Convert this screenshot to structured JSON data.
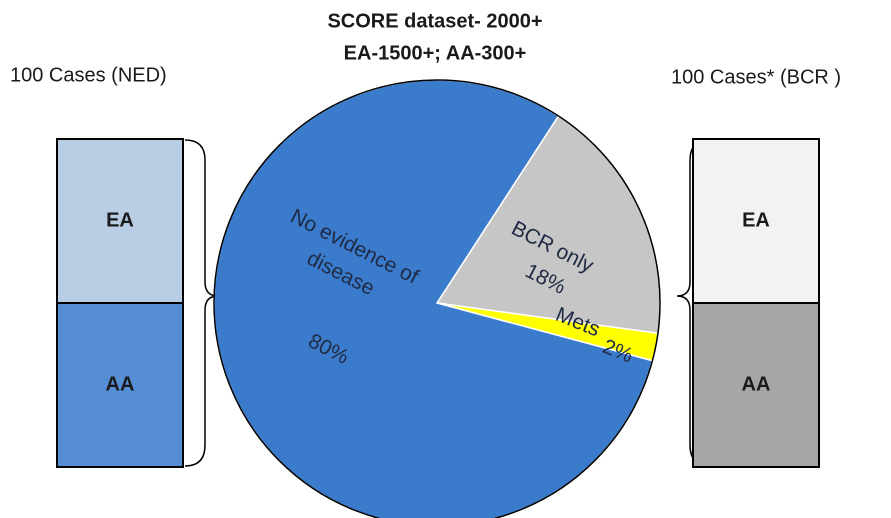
{
  "chart_data": {
    "type": "pie",
    "title": "SCORE dataset- 2000+",
    "subtitle": "EA-1500+; AA-300+",
    "categories": [
      "No evidence of disease",
      "BCR only",
      "Mets"
    ],
    "values": [
      80,
      18,
      2
    ],
    "value_labels": [
      "80%",
      "18%",
      "2%"
    ],
    "colors": [
      "#3b7bcb",
      "#c6c6c6",
      "#ffff00"
    ]
  },
  "left_group": {
    "label": "100 Cases (NED)",
    "segments": [
      "EA",
      "AA"
    ]
  },
  "right_group": {
    "label": "100 Cases* (BCR )",
    "segments": [
      "EA",
      "AA"
    ]
  }
}
